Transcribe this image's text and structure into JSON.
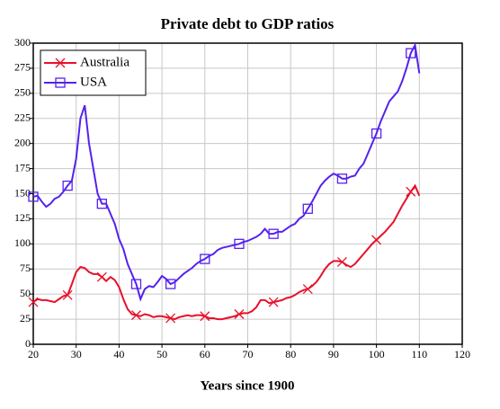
{
  "chart_data": {
    "type": "line",
    "title": "Private debt to GDP ratios",
    "x_label": "Years since 1900",
    "x": [
      20,
      21,
      22,
      23,
      24,
      25,
      26,
      27,
      28,
      29,
      30,
      31,
      32,
      33,
      34,
      35,
      36,
      37,
      38,
      39,
      40,
      41,
      42,
      43,
      44,
      45,
      46,
      47,
      48,
      49,
      50,
      51,
      52,
      53,
      54,
      55,
      56,
      57,
      58,
      59,
      60,
      61,
      62,
      63,
      64,
      65,
      66,
      67,
      68,
      69,
      70,
      71,
      72,
      73,
      74,
      75,
      76,
      77,
      78,
      79,
      80,
      81,
      82,
      83,
      84,
      85,
      86,
      87,
      88,
      89,
      90,
      91,
      92,
      93,
      94,
      95,
      96,
      97,
      98,
      99,
      100,
      101,
      102,
      103,
      104,
      105,
      106,
      107,
      108,
      109,
      110
    ],
    "series": [
      {
        "name": "Australia",
        "color": "#e8102a",
        "marker": "cross",
        "values": [
          42,
          45,
          44,
          44,
          43,
          42,
          45,
          48,
          49,
          60,
          72,
          77,
          76,
          72,
          70,
          70,
          67,
          63,
          67,
          64,
          57,
          45,
          35,
          30,
          29,
          28,
          30,
          29,
          27,
          28,
          28,
          27,
          26,
          25,
          27,
          28,
          29,
          28,
          29,
          29,
          28,
          26,
          26,
          25,
          25,
          26,
          27,
          28,
          30,
          31,
          31,
          33,
          37,
          44,
          44,
          41,
          42,
          43,
          44,
          46,
          47,
          49,
          52,
          54,
          55,
          58,
          62,
          68,
          75,
          80,
          83,
          83,
          82,
          79,
          77,
          80,
          85,
          90,
          95,
          100,
          104,
          108,
          112,
          117,
          122,
          130,
          138,
          145,
          152,
          158,
          148
        ]
      },
      {
        "name": "USA",
        "color": "#5522ee",
        "marker": "square",
        "values": [
          147,
          148,
          142,
          137,
          140,
          145,
          147,
          152,
          158,
          163,
          185,
          225,
          238,
          200,
          175,
          150,
          140,
          140,
          130,
          120,
          105,
          95,
          80,
          70,
          60,
          45,
          55,
          58,
          57,
          62,
          68,
          65,
          60,
          62,
          66,
          70,
          73,
          76,
          80,
          83,
          85,
          88,
          90,
          94,
          96,
          97,
          98,
          99,
          100,
          102,
          103,
          105,
          107,
          110,
          115,
          110,
          110,
          112,
          112,
          115,
          118,
          120,
          125,
          128,
          135,
          142,
          150,
          158,
          163,
          167,
          170,
          168,
          165,
          165,
          167,
          168,
          175,
          180,
          190,
          200,
          210,
          222,
          232,
          242,
          247,
          252,
          262,
          275,
          290,
          298,
          270
        ]
      }
    ],
    "xlim": [
      20,
      120
    ],
    "xticks": [
      20,
      30,
      40,
      50,
      60,
      70,
      80,
      90,
      100,
      110,
      120
    ],
    "ylim": [
      0,
      300
    ],
    "yticks": [
      0,
      25,
      50,
      75,
      100,
      125,
      150,
      175,
      200,
      225,
      250,
      275,
      300
    ],
    "grid": true,
    "legend": "upper left"
  }
}
